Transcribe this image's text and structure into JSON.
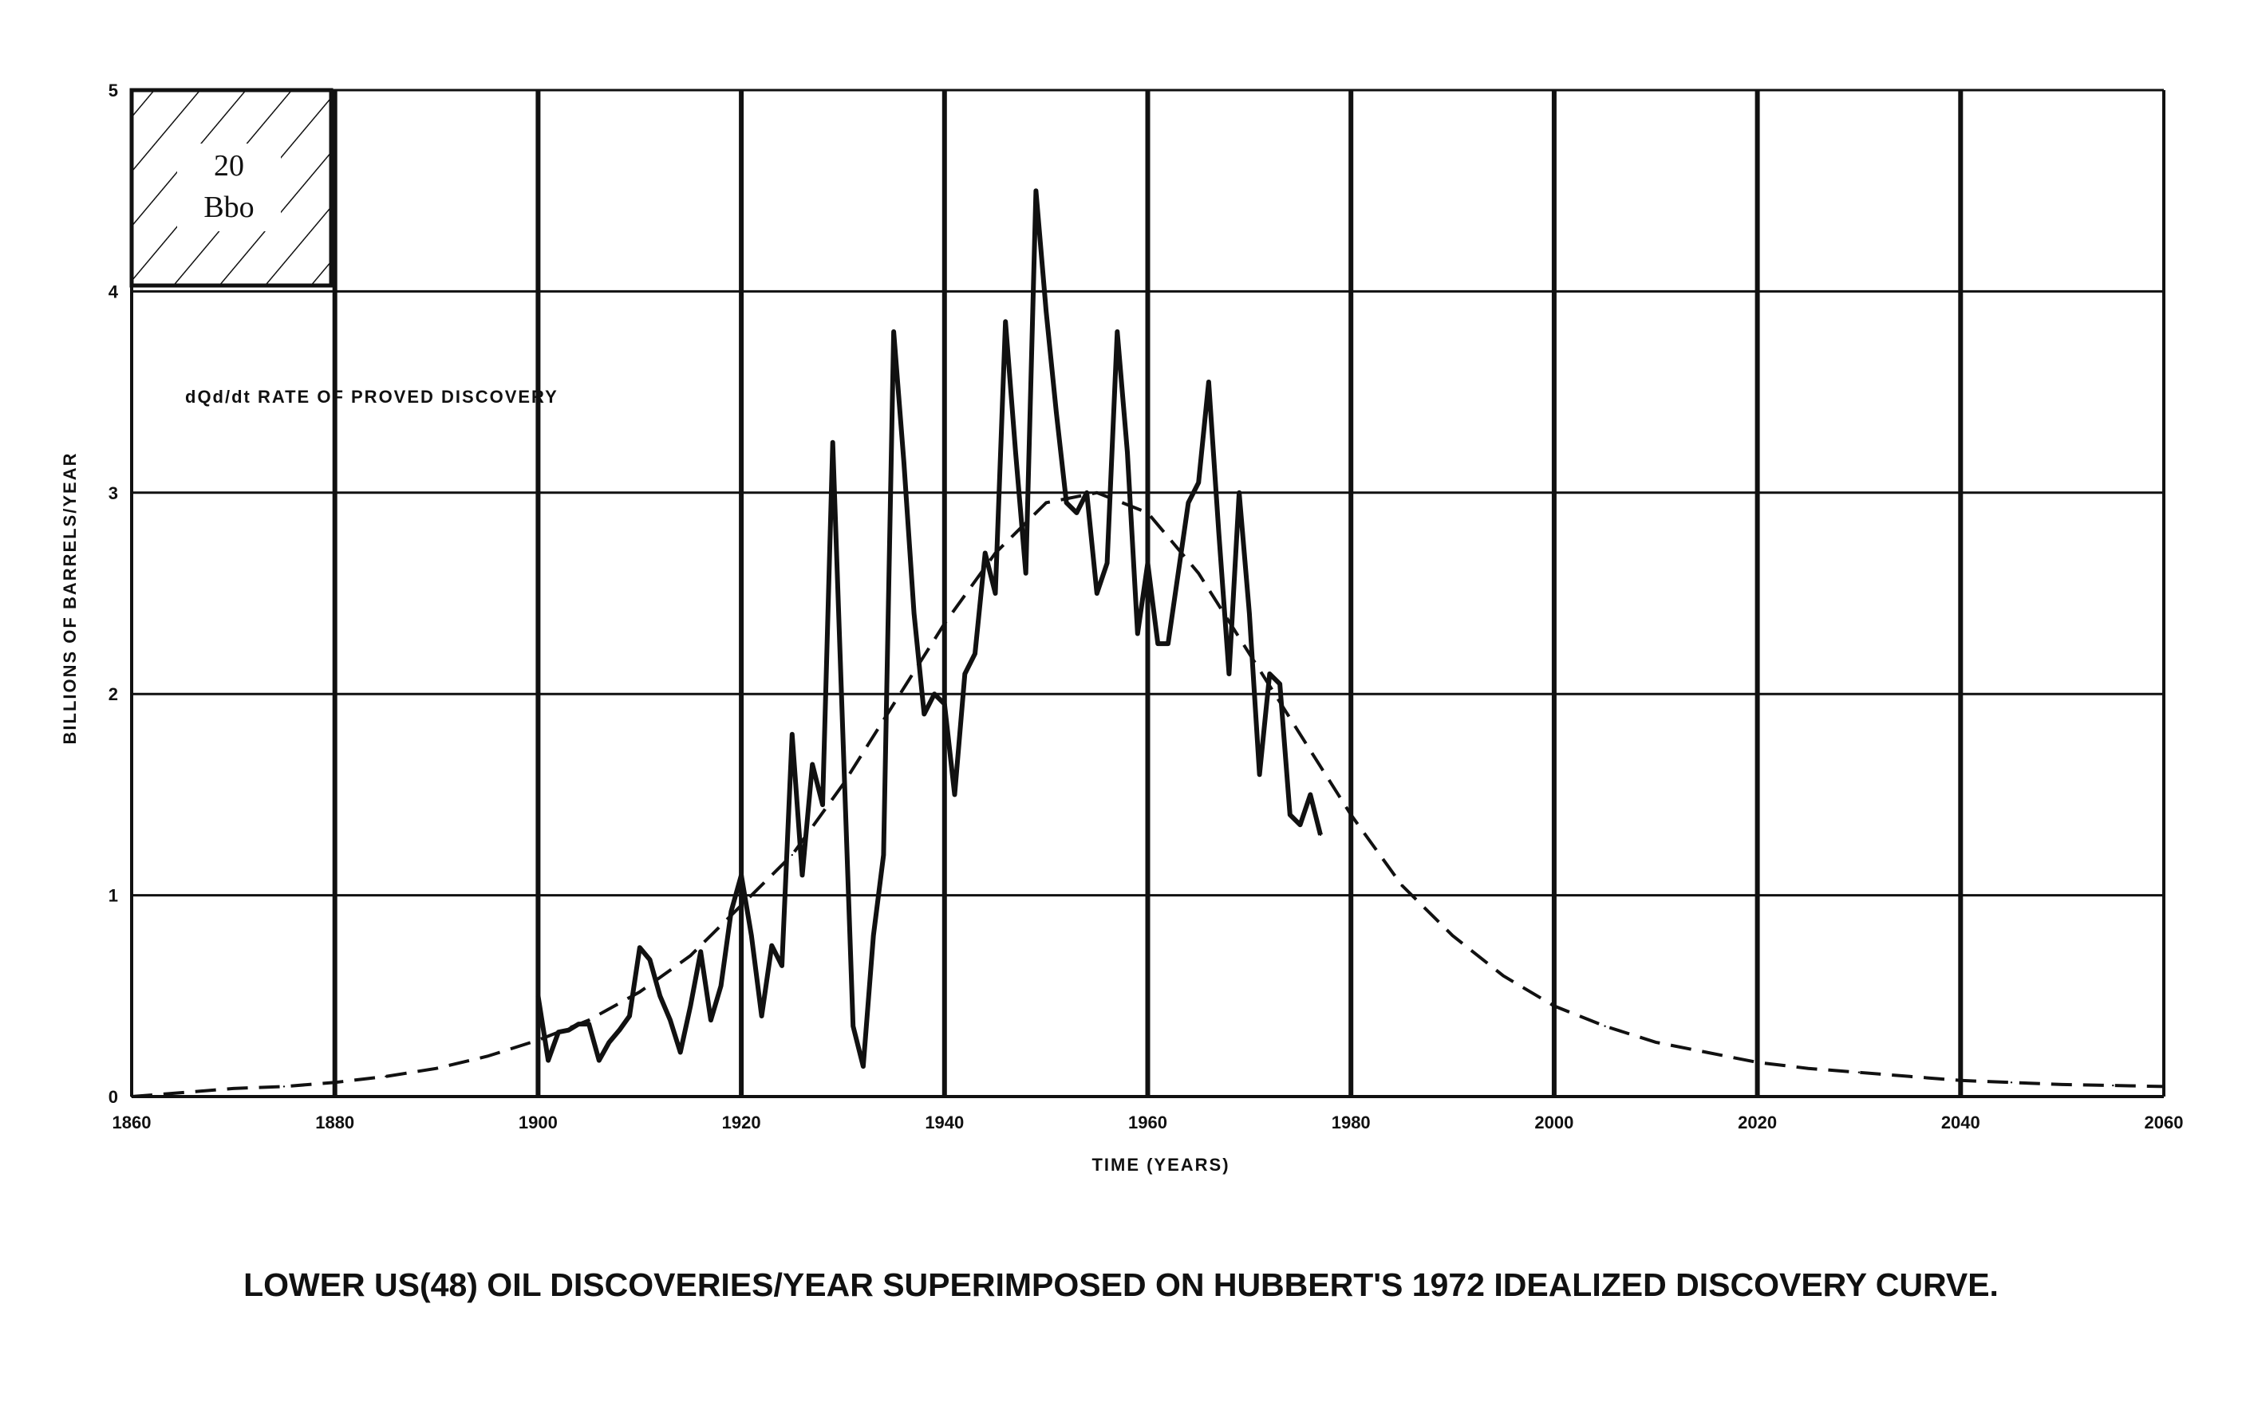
{
  "chart_data": {
    "type": "line",
    "title": "",
    "caption": "LOWER US(48) OIL DISCOVERIES/YEAR SUPERIMPOSED ON HUBBERT'S 1972 IDEALIZED DISCOVERY CURVE.",
    "xlabel": "TIME (YEARS)",
    "ylabel": "BILLIONS OF BARRELS/YEAR",
    "xlim": [
      1860,
      2060
    ],
    "ylim": [
      0,
      5
    ],
    "x_ticks": [
      "1860",
      "1880",
      "1900",
      "1920",
      "1940",
      "1960",
      "1980",
      "2000",
      "2020",
      "2040",
      "2060"
    ],
    "y_ticks": [
      "0",
      "1",
      "2",
      "3",
      "4",
      "5"
    ],
    "grid": true,
    "annotation": "dQd/dt RATE OF PROVED DISCOVERY",
    "scale_box": {
      "label_top": "20",
      "label_bottom": "Bbo"
    },
    "series": [
      {
        "style": "solid",
        "x": [
          1900,
          1901,
          1902,
          1903,
          1904,
          1905,
          1906,
          1907,
          1908,
          1909,
          1910,
          1911,
          1912,
          1913,
          1914,
          1915,
          1916,
          1917,
          1918,
          1919,
          1920,
          1921,
          1922,
          1923,
          1924,
          1925,
          1926,
          1927,
          1928,
          1929,
          1930,
          1931,
          1932,
          1933,
          1934,
          1935,
          1936,
          1937,
          1938,
          1939,
          1940,
          1941,
          1942,
          1943,
          1944,
          1945,
          1946,
          1947,
          1948,
          1949,
          1950,
          1951,
          1952,
          1953,
          1954,
          1955,
          1956,
          1957,
          1958,
          1959,
          1960,
          1961,
          1962,
          1963,
          1964,
          1965,
          1966,
          1967,
          1968,
          1969,
          1970,
          1971,
          1972,
          1973,
          1974,
          1975,
          1976,
          1977
        ],
        "y": [
          0.5,
          0.18,
          0.32,
          0.33,
          0.36,
          0.36,
          0.18,
          0.27,
          0.33,
          0.4,
          0.74,
          0.68,
          0.5,
          0.38,
          0.22,
          0.45,
          0.72,
          0.38,
          0.55,
          0.92,
          1.1,
          0.8,
          0.4,
          0.75,
          0.65,
          1.8,
          1.1,
          1.65,
          1.45,
          3.25,
          1.8,
          0.35,
          0.15,
          0.8,
          1.2,
          3.8,
          3.15,
          2.4,
          1.9,
          2.0,
          1.95,
          1.5,
          2.1,
          2.2,
          2.7,
          2.5,
          3.85,
          3.2,
          2.6,
          4.5,
          3.9,
          3.4,
          2.95,
          2.9,
          3.0,
          2.5,
          2.65,
          3.8,
          3.2,
          2.3,
          2.65,
          2.25,
          2.25,
          2.6,
          2.95,
          3.05,
          3.55,
          2.8,
          2.1,
          3.0,
          2.4,
          1.6,
          2.1,
          2.05,
          1.4,
          1.35,
          1.5,
          1.3
        ]
      },
      {
        "style": "dashed",
        "x": [
          1860,
          1865,
          1870,
          1875,
          1880,
          1885,
          1890,
          1895,
          1900,
          1905,
          1910,
          1915,
          1920,
          1925,
          1930,
          1935,
          1940,
          1945,
          1950,
          1955,
          1960,
          1965,
          1970,
          1975,
          1980,
          1985,
          1990,
          1995,
          2000,
          2005,
          2010,
          2015,
          2020,
          2025,
          2030,
          2035,
          2040,
          2045,
          2050,
          2055,
          2060
        ],
        "y": [
          0.0,
          0.02,
          0.04,
          0.05,
          0.07,
          0.1,
          0.14,
          0.2,
          0.28,
          0.38,
          0.52,
          0.7,
          0.95,
          1.2,
          1.55,
          1.95,
          2.35,
          2.7,
          2.95,
          3.0,
          2.9,
          2.6,
          2.2,
          1.8,
          1.4,
          1.05,
          0.8,
          0.6,
          0.45,
          0.35,
          0.27,
          0.22,
          0.17,
          0.14,
          0.12,
          0.1,
          0.08,
          0.07,
          0.06,
          0.055,
          0.05
        ]
      }
    ]
  }
}
